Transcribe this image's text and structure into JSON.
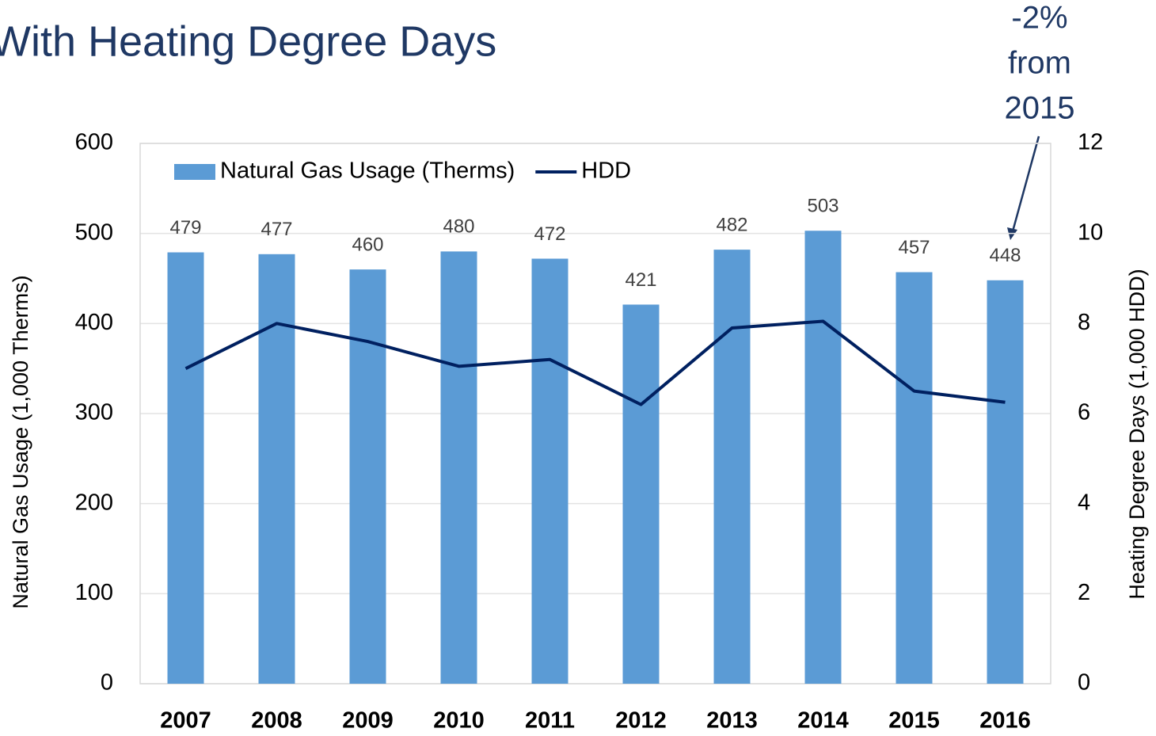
{
  "chart_data": {
    "type": "bar_line",
    "subtitle": "With Heating Degree Days",
    "annotation": [
      "-2%",
      "from",
      "2015"
    ],
    "y_label": "Natural Gas Usage (1,000 Therms)",
    "y2_label": "Heating Degree Days (1,000 HDD)",
    "categories": [
      "2007",
      "2008",
      "2009",
      "2010",
      "2011",
      "2012",
      "2013",
      "2014",
      "2015",
      "2016"
    ],
    "series": [
      {
        "name": "Natural Gas Usage (Therms)",
        "color": "#5b9bd5",
        "type": "bar",
        "values": [
          479,
          477,
          460,
          480,
          472,
          421,
          482,
          503,
          457,
          448
        ]
      },
      {
        "name": "HDD",
        "color": "#002060",
        "type": "line",
        "axis": "y2",
        "values": [
          7.0,
          8.0,
          7.6,
          7.05,
          7.2,
          6.2,
          7.9,
          8.05,
          6.5,
          6.25
        ]
      }
    ],
    "ylim": [
      0,
      600
    ],
    "yticks": [
      0,
      100,
      200,
      300,
      400,
      500,
      600
    ],
    "y2lim": [
      0,
      12
    ],
    "y2ticks": [
      0,
      2,
      4,
      6,
      8,
      10,
      12
    ],
    "grid": true,
    "legend": "top-left"
  }
}
